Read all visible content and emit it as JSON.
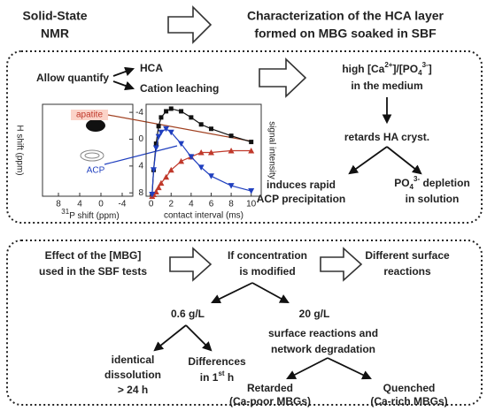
{
  "header": {
    "left": [
      "Solid-State",
      "NMR"
    ],
    "right": [
      "Characterization of the HCA layer",
      "formed on MBG soaked in SBF"
    ]
  },
  "box1": {
    "allow": "Allow quantify",
    "hca": "HCA",
    "cation": "Cation leaching",
    "ratio": [
      "high [Ca",
      "2+",
      "]/[PO",
      "4",
      "3-",
      "]"
    ],
    "medium": "in the medium",
    "retards": "retards HA cryst.",
    "induces": [
      "induces rapid",
      "ACP precipitation"
    ],
    "depletion": [
      "PO",
      "4",
      "3-",
      " depletion"
    ],
    "solution": "in solution",
    "spectrum": {
      "xlabel": [
        "31",
        "P shift (ppm)"
      ],
      "ylabel": "H shift (ppm)",
      "apatite": "apatite",
      "acp": "ACP",
      "xlim": [
        11,
        -6
      ],
      "xticks": [
        8,
        4,
        0,
        -4
      ],
      "ylim": [
        -5.2,
        8.5
      ],
      "yticks": [
        -4,
        0,
        4,
        8
      ]
    },
    "plot": {
      "xlabel": "contact interval (ms)",
      "ylabel": "signal intensity",
      "xlim": [
        -0.5,
        11
      ],
      "xticks": [
        0,
        2,
        4,
        6,
        8,
        10
      ],
      "ylim": [
        0,
        1.05
      ],
      "x": [
        0.1,
        0.25,
        0.5,
        0.75,
        1,
        1.5,
        2,
        3,
        4,
        5,
        6,
        8,
        10
      ],
      "series": [
        {
          "color": "#111111",
          "marker": "square",
          "values": [
            0.02,
            0.3,
            0.6,
            0.8,
            0.9,
            0.97,
            1.0,
            0.97,
            0.9,
            0.82,
            0.77,
            0.69,
            0.62
          ]
        },
        {
          "color": "#c0392b",
          "marker": "up",
          "values": [
            0,
            0.02,
            0.05,
            0.1,
            0.15,
            0.22,
            0.3,
            0.4,
            0.45,
            0.5,
            0.5,
            0.52,
            0.52
          ]
        },
        {
          "color": "#1f3fbf",
          "marker": "down",
          "values": [
            0.02,
            0.3,
            0.55,
            0.68,
            0.73,
            0.77,
            0.73,
            0.6,
            0.45,
            0.33,
            0.23,
            0.12,
            0.06
          ]
        }
      ]
    }
  },
  "box2": {
    "effect": [
      "Effect of the [MBG]",
      "used in the SBF tests"
    ],
    "if": [
      "If concentration",
      "is modified"
    ],
    "different": [
      "Different surface",
      "reactions"
    ],
    "low": "0.6 g/L",
    "high": "20 g/L",
    "surface": [
      "surface reactions and",
      "network degradation"
    ],
    "identical": [
      "identical",
      "dissolution",
      "> 24 h"
    ],
    "differences": [
      "Differences"
    ],
    "first": [
      "in 1",
      "st",
      " h"
    ],
    "retarded": [
      "Retarded",
      "(Ca-poor MBGs)"
    ],
    "quenched": [
      "Quenched",
      "(Ca-rich MBGs)"
    ]
  }
}
